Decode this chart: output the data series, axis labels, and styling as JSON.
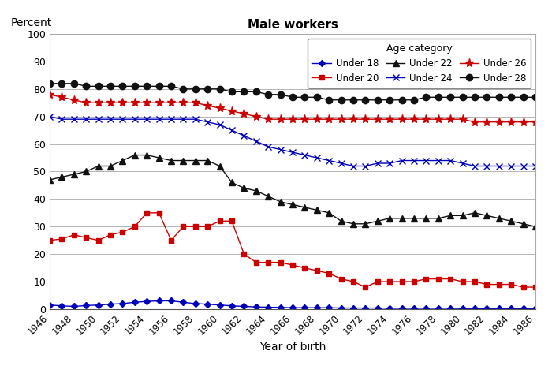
{
  "title": "Male workers",
  "ylabel": "Percent",
  "xlabel": "Year of birth",
  "legend_title": "Age category",
  "ylim": [
    0,
    100
  ],
  "yticks": [
    0,
    10,
    20,
    30,
    40,
    50,
    60,
    70,
    80,
    90,
    100
  ],
  "series": {
    "Under 18": {
      "color": "#0000bb",
      "marker": "D",
      "markersize": 4,
      "years": [
        1946,
        1947,
        1948,
        1949,
        1950,
        1951,
        1952,
        1953,
        1954,
        1955,
        1956,
        1957,
        1958,
        1959,
        1960,
        1961,
        1962,
        1963,
        1964,
        1965,
        1966,
        1967,
        1968,
        1969,
        1970,
        1971,
        1972,
        1973,
        1974,
        1975,
        1976,
        1977,
        1978,
        1979,
        1980,
        1981,
        1982,
        1983,
        1984,
        1985,
        1986
      ],
      "values": [
        1.5,
        1.2,
        1.0,
        1.3,
        1.5,
        1.8,
        2.0,
        2.5,
        2.8,
        3.0,
        3.0,
        2.5,
        2.0,
        1.8,
        1.5,
        1.2,
        1.0,
        0.8,
        0.7,
        0.6,
        0.5,
        0.5,
        0.5,
        0.5,
        0.4,
        0.4,
        0.4,
        0.4,
        0.3,
        0.3,
        0.3,
        0.3,
        0.3,
        0.3,
        0.2,
        0.2,
        0.2,
        0.2,
        0.2,
        0.2,
        0.2
      ]
    },
    "Under 20": {
      "color": "#cc0000",
      "marker": "s",
      "markersize": 5,
      "years": [
        1946,
        1947,
        1948,
        1949,
        1950,
        1951,
        1952,
        1953,
        1954,
        1955,
        1956,
        1957,
        1958,
        1959,
        1960,
        1961,
        1962,
        1963,
        1964,
        1965,
        1966,
        1967,
        1968,
        1969,
        1970,
        1971,
        1972,
        1973,
        1974,
        1975,
        1976,
        1977,
        1978,
        1979,
        1980,
        1981,
        1982,
        1983,
        1984,
        1985,
        1986
      ],
      "values": [
        25,
        25.5,
        27,
        26,
        25,
        27,
        28,
        30,
        35,
        35,
        25,
        30,
        30,
        30,
        32,
        32,
        20,
        17,
        17,
        17,
        16,
        15,
        14,
        13,
        11,
        10,
        8,
        10,
        10,
        10,
        10,
        11,
        11,
        11,
        10,
        10,
        9,
        9,
        9,
        8,
        8
      ]
    },
    "Under 22": {
      "color": "#111111",
      "marker": "^",
      "markersize": 6,
      "years": [
        1946,
        1947,
        1948,
        1949,
        1950,
        1951,
        1952,
        1953,
        1954,
        1955,
        1956,
        1957,
        1958,
        1959,
        1960,
        1961,
        1962,
        1963,
        1964,
        1965,
        1966,
        1967,
        1968,
        1969,
        1970,
        1971,
        1972,
        1973,
        1974,
        1975,
        1976,
        1977,
        1978,
        1979,
        1980,
        1981,
        1982,
        1983,
        1984,
        1985,
        1986
      ],
      "values": [
        47,
        48,
        49,
        50,
        52,
        52,
        54,
        56,
        56,
        55,
        54,
        54,
        54,
        54,
        52,
        46,
        44,
        43,
        41,
        39,
        38,
        37,
        36,
        35,
        32,
        31,
        31,
        32,
        33,
        33,
        33,
        33,
        33,
        34,
        34,
        35,
        34,
        33,
        32,
        31,
        30
      ]
    },
    "Under 24": {
      "color": "#0000bb",
      "marker": "x",
      "markersize": 6,
      "years": [
        1946,
        1947,
        1948,
        1949,
        1950,
        1951,
        1952,
        1953,
        1954,
        1955,
        1956,
        1957,
        1958,
        1959,
        1960,
        1961,
        1962,
        1963,
        1964,
        1965,
        1966,
        1967,
        1968,
        1969,
        1970,
        1971,
        1972,
        1973,
        1974,
        1975,
        1976,
        1977,
        1978,
        1979,
        1980,
        1981,
        1982,
        1983,
        1984,
        1985,
        1986
      ],
      "values": [
        70,
        69,
        69,
        69,
        69,
        69,
        69,
        69,
        69,
        69,
        69,
        69,
        69,
        68,
        67,
        65,
        63,
        61,
        59,
        58,
        57,
        56,
        55,
        54,
        53,
        52,
        52,
        53,
        53,
        54,
        54,
        54,
        54,
        54,
        53,
        52,
        52,
        52,
        52,
        52,
        52
      ]
    },
    "Under 26": {
      "color": "#cc0000",
      "marker": "*",
      "markersize": 8,
      "years": [
        1946,
        1947,
        1948,
        1949,
        1950,
        1951,
        1952,
        1953,
        1954,
        1955,
        1956,
        1957,
        1958,
        1959,
        1960,
        1961,
        1962,
        1963,
        1964,
        1965,
        1966,
        1967,
        1968,
        1969,
        1970,
        1971,
        1972,
        1973,
        1974,
        1975,
        1976,
        1977,
        1978,
        1979,
        1980,
        1981,
        1982,
        1983,
        1984,
        1985,
        1986
      ],
      "values": [
        78,
        77,
        76,
        75,
        75,
        75,
        75,
        75,
        75,
        75,
        75,
        75,
        75,
        74,
        73,
        72,
        71,
        70,
        69,
        69,
        69,
        69,
        69,
        69,
        69,
        69,
        69,
        69,
        69,
        69,
        69,
        69,
        69,
        69,
        69,
        68,
        68,
        68,
        68,
        68,
        68
      ]
    },
    "Under 28": {
      "color": "#111111",
      "marker": "o",
      "markersize": 6,
      "years": [
        1946,
        1947,
        1948,
        1949,
        1950,
        1951,
        1952,
        1953,
        1954,
        1955,
        1956,
        1957,
        1958,
        1959,
        1960,
        1961,
        1962,
        1963,
        1964,
        1965,
        1966,
        1967,
        1968,
        1969,
        1970,
        1971,
        1972,
        1973,
        1974,
        1975,
        1976,
        1977,
        1978,
        1979,
        1980,
        1981,
        1982,
        1983,
        1984,
        1985,
        1986
      ],
      "values": [
        82,
        82,
        82,
        81,
        81,
        81,
        81,
        81,
        81,
        81,
        81,
        80,
        80,
        80,
        80,
        79,
        79,
        79,
        78,
        78,
        77,
        77,
        77,
        76,
        76,
        76,
        76,
        76,
        76,
        76,
        76,
        77,
        77,
        77,
        77,
        77,
        77,
        77,
        77,
        77,
        77
      ]
    }
  },
  "legend_order": [
    "Under 18",
    "Under 20",
    "Under 22",
    "Under 24",
    "Under 26",
    "Under 28"
  ],
  "xtick_years": [
    1946,
    1948,
    1950,
    1952,
    1954,
    1956,
    1958,
    1960,
    1962,
    1964,
    1966,
    1968,
    1970,
    1972,
    1974,
    1976,
    1978,
    1980,
    1982,
    1984,
    1986
  ]
}
